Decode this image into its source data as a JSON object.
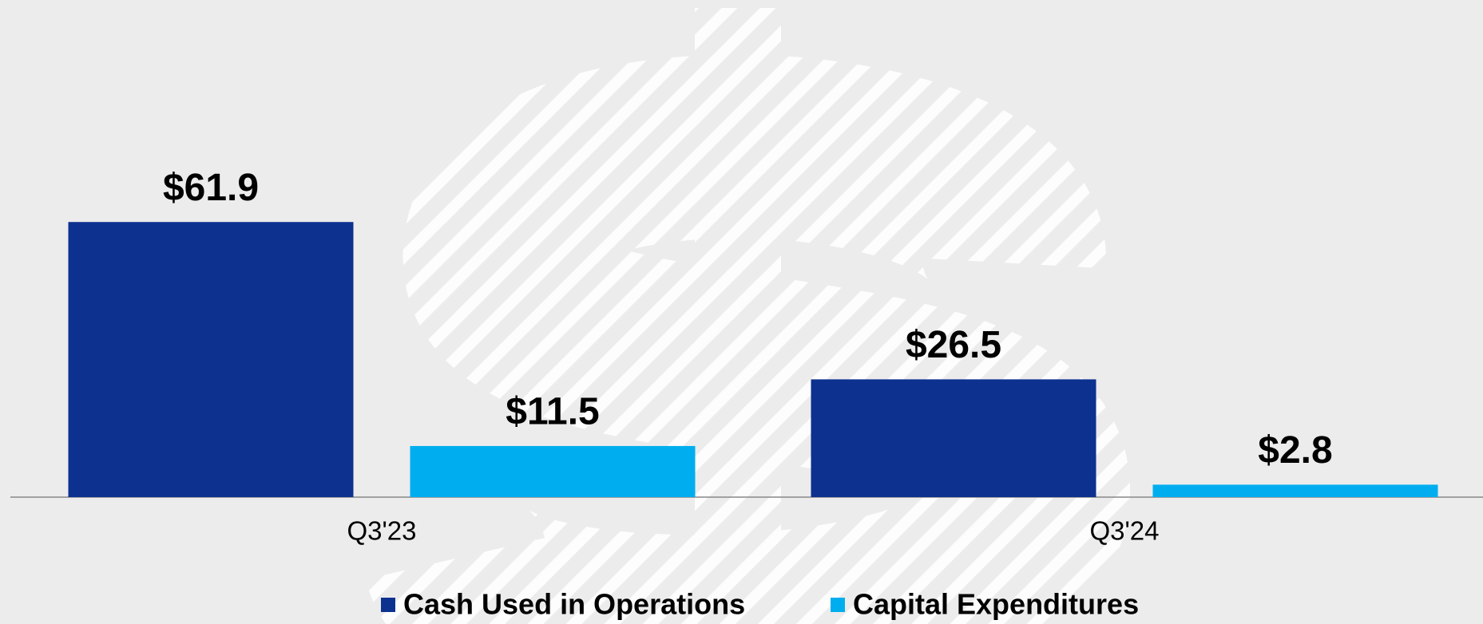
{
  "chart_data": {
    "type": "bar",
    "categories": [
      "Q3'23",
      "Q3'24"
    ],
    "series": [
      {
        "name": "Cash Used in Operations",
        "color": "#0d318f",
        "values": [
          61.9,
          26.5
        ],
        "value_labels": [
          "$61.9",
          "$26.5"
        ]
      },
      {
        "name": "Capital Expenditures",
        "color": "#00aeef",
        "values": [
          11.5,
          2.8
        ],
        "value_labels": [
          "$11.5",
          "$2.8"
        ]
      }
    ]
  }
}
